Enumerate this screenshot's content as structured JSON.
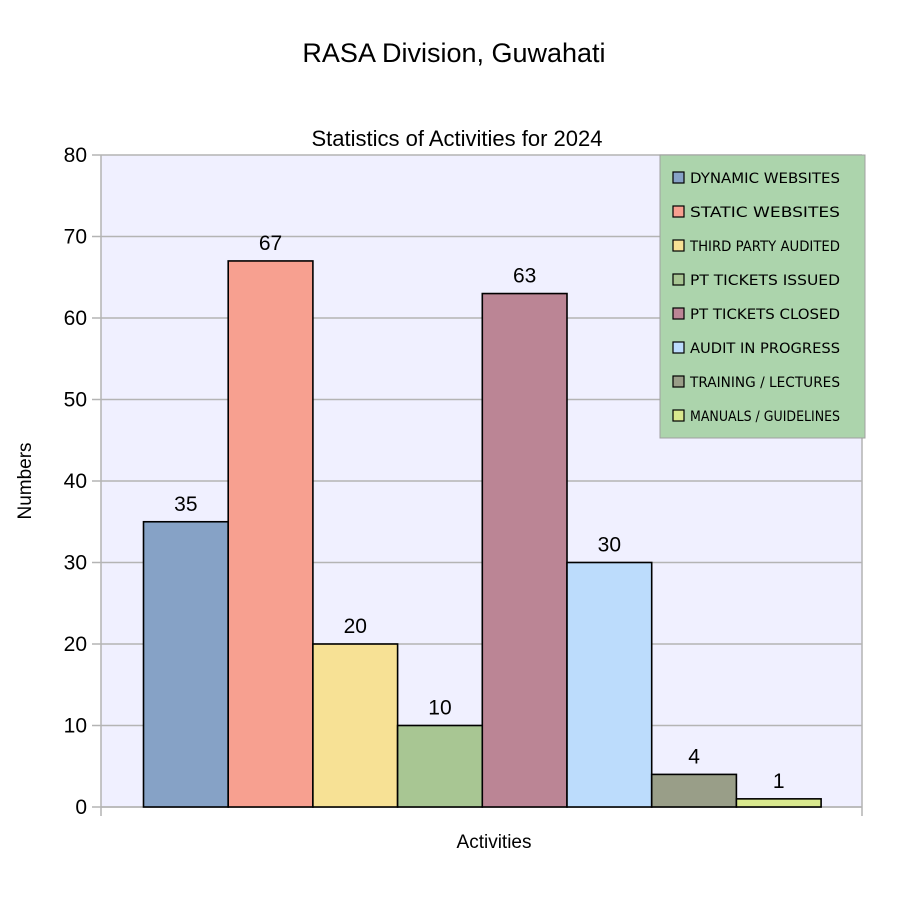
{
  "header": {
    "title": "RASA Division, Guwahati"
  },
  "chart_data": {
    "type": "bar",
    "title": "Statistics of Activities for 2024",
    "xlabel": "Activities",
    "ylabel": "Numbers",
    "ylim": [
      0,
      80
    ],
    "yticks": [
      0,
      10,
      20,
      30,
      40,
      50,
      60,
      70,
      80
    ],
    "grid": true,
    "legend_position": "top-right",
    "background_color": "#f0f0ff",
    "legend_background": "#acd4ac",
    "series": [
      {
        "name": "DYNAMIC WEBSITES",
        "value": 35,
        "color": "#86a2c6"
      },
      {
        "name": "STATIC WEBSITES",
        "value": 67,
        "color": "#f7a090"
      },
      {
        "name": "THIRD PARTY AUDITED",
        "value": 20,
        "color": "#f7e195"
      },
      {
        "name": "PT TICKETS ISSUED",
        "value": 10,
        "color": "#a8c693"
      },
      {
        "name": "PT TICKETS CLOSED",
        "value": 63,
        "color": "#bb8595"
      },
      {
        "name": "AUDIT IN PROGRESS",
        "value": 30,
        "color": "#bcdcfc"
      },
      {
        "name": "TRAINING / LECTURES",
        "value": 4,
        "color": "#999e88"
      },
      {
        "name": "MANUALS / GUIDELINES",
        "value": 1,
        "color": "#d9e88e"
      }
    ]
  }
}
